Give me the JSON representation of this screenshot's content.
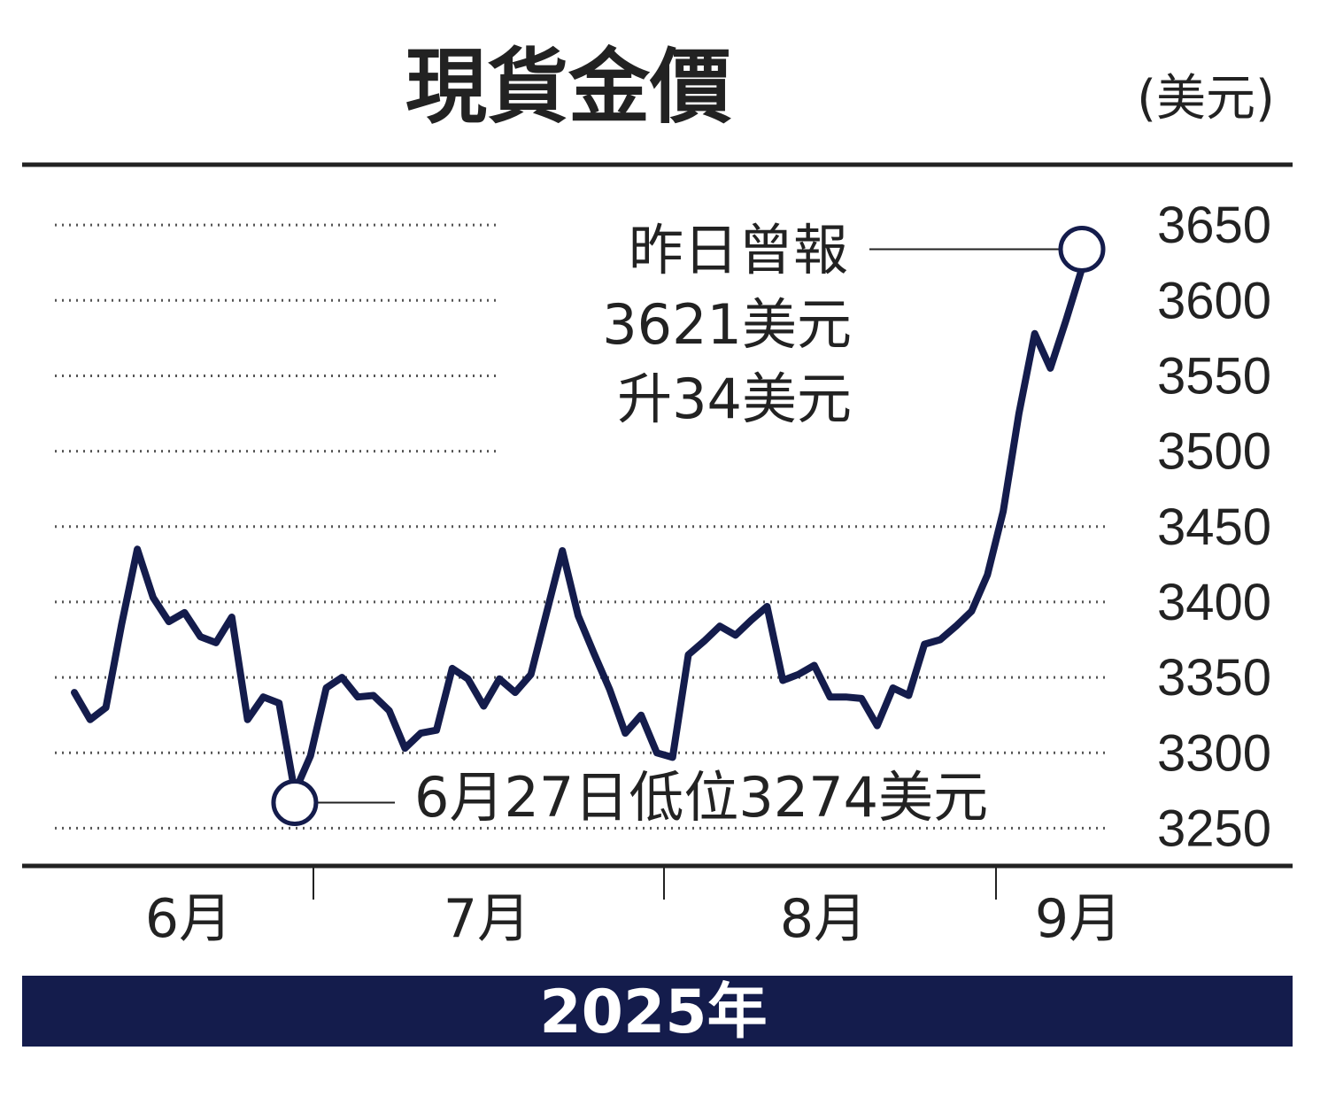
{
  "chart_data": {
    "type": "line",
    "title": "現貨金價",
    "unit": "(美元)",
    "year_label": "2025年",
    "ylim": [
      3225,
      3690
    ],
    "yticks": [
      3650,
      3600,
      3550,
      3500,
      3450,
      3400,
      3350,
      3300,
      3250
    ],
    "months": [
      "6月",
      "7月",
      "8月",
      "9月"
    ],
    "series": [
      {
        "color": "#141c4c",
        "values": [
          3340,
          3322,
          3330,
          3385,
          3435,
          3403,
          3387,
          3393,
          3377,
          3373,
          3390,
          3322,
          3337,
          3333,
          3274,
          3298,
          3343,
          3350,
          3337,
          3338,
          3328,
          3303,
          3313,
          3315,
          3356,
          3349,
          3331,
          3349,
          3340,
          3352,
          3393,
          3434,
          3391,
          3366,
          3342,
          3313,
          3325,
          3300,
          3297,
          3365,
          3374,
          3384,
          3378,
          3388,
          3397,
          3348,
          3352,
          3358,
          3337,
          3337,
          3336,
          3318,
          3343,
          3338,
          3372,
          3375,
          3384,
          3394,
          3418,
          3460,
          3525,
          3578,
          3555,
          3587,
          3621
        ]
      }
    ],
    "annotations": {
      "high": {
        "lines": [
          "昨日曾報",
          "3621美元",
          "升34美元"
        ],
        "value": 3621
      },
      "low": {
        "text": "6月27日低位3274美元",
        "value": 3274
      }
    }
  }
}
